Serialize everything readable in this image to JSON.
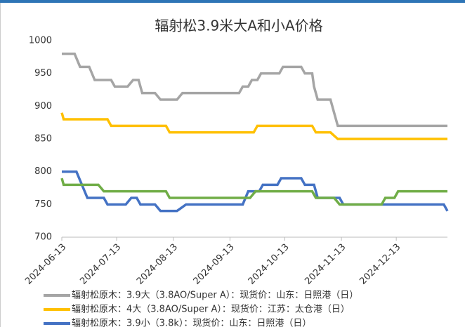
{
  "chart_data": {
    "type": "line",
    "title": "辐射松3.9米大A和小A价格",
    "xlim": [
      "2024-06-13",
      "2025-01-10"
    ],
    "xticks": [
      "2024-06-13",
      "2024-07-13",
      "2024-08-13",
      "2024-09-13",
      "2024-10-13",
      "2024-11-13",
      "2024-12-13"
    ],
    "ylim": [
      700,
      1000
    ],
    "yticks": [
      700,
      750,
      800,
      850,
      900,
      950,
      1000
    ],
    "grid": false,
    "series": [
      {
        "name": "辐射松原木：3.9大（3.8AO/Super A）：现货价：山东：日照港（日）",
        "color": "#a5a5a5",
        "x": [
          "2024-06-13",
          "2024-06-20",
          "2024-06-23",
          "2024-06-28",
          "2024-07-01",
          "2024-07-10",
          "2024-07-12",
          "2024-07-19",
          "2024-07-22",
          "2024-07-25",
          "2024-07-27",
          "2024-08-03",
          "2024-08-06",
          "2024-08-15",
          "2024-08-18",
          "2024-09-18",
          "2024-09-20",
          "2024-09-23",
          "2024-09-25",
          "2024-09-28",
          "2024-09-30",
          "2024-10-10",
          "2024-10-12",
          "2024-10-22",
          "2024-10-24",
          "2024-10-28",
          "2024-10-29",
          "2024-10-31",
          "2024-11-07",
          "2024-11-11",
          "2025-01-10"
        ],
        "values": [
          980,
          980,
          960,
          960,
          940,
          940,
          930,
          930,
          940,
          940,
          920,
          920,
          910,
          910,
          920,
          920,
          930,
          930,
          940,
          940,
          950,
          950,
          960,
          960,
          950,
          950,
          930,
          910,
          910,
          870,
          870
        ]
      },
      {
        "name": "辐射松原木：4大（3.8AO/Super A）：现货价：江苏：太仓港（日）",
        "color": "#ffc000",
        "x": [
          "2024-06-13",
          "2024-06-14",
          "2024-07-08",
          "2024-07-10",
          "2024-08-09",
          "2024-08-11",
          "2024-09-26",
          "2024-09-28",
          "2024-10-28",
          "2024-10-30",
          "2024-11-07",
          "2024-11-11",
          "2025-01-10"
        ],
        "values": [
          890,
          880,
          880,
          870,
          870,
          860,
          860,
          870,
          870,
          860,
          860,
          850,
          850
        ]
      },
      {
        "name": "辐射松原木：3.9小（3.8k）：现货价：山东：日照港（日）",
        "color": "#4472c4",
        "x": [
          "2024-06-13",
          "2024-06-21",
          "2024-06-27",
          "2024-07-06",
          "2024-07-08",
          "2024-07-18",
          "2024-07-21",
          "2024-07-24",
          "2024-07-26",
          "2024-08-03",
          "2024-08-06",
          "2024-08-15",
          "2024-08-20",
          "2024-09-20",
          "2024-09-23",
          "2024-09-29",
          "2024-10-01",
          "2024-10-09",
          "2024-10-11",
          "2024-10-22",
          "2024-10-24",
          "2024-10-29",
          "2024-10-31",
          "2024-11-12",
          "2024-11-14",
          "2025-01-08",
          "2025-01-10"
        ],
        "values": [
          800,
          800,
          760,
          760,
          750,
          750,
          760,
          760,
          750,
          750,
          740,
          740,
          750,
          750,
          770,
          770,
          780,
          780,
          790,
          790,
          780,
          780,
          760,
          760,
          750,
          750,
          740
        ]
      },
      {
        "name": null,
        "color": "#70ad47",
        "x": [
          "2024-06-13",
          "2024-06-14",
          "2024-07-03",
          "2024-07-06",
          "2024-08-09",
          "2024-08-11",
          "2024-09-24",
          "2024-09-27",
          "2024-10-28",
          "2024-10-30",
          "2024-11-09",
          "2024-11-12",
          "2024-12-05",
          "2024-12-07",
          "2024-12-12",
          "2024-12-14",
          "2025-01-10"
        ],
        "values": [
          790,
          780,
          780,
          770,
          770,
          760,
          760,
          770,
          770,
          760,
          760,
          750,
          750,
          760,
          760,
          770,
          770
        ]
      }
    ]
  }
}
